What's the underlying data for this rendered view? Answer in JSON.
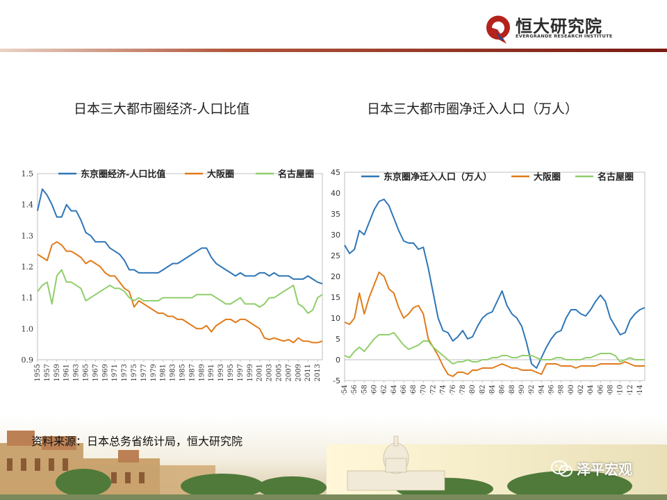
{
  "brand": {
    "name": "恒大研究院",
    "subtitle": "EVERGRANDE RESEARCH INSTITUTE",
    "accent_color": "#a52a1a",
    "logo_icon": "evergrande-logo-icon"
  },
  "source_note": "资料来源：日本总务省统计局，恒大研究院",
  "wechat": {
    "label": "泽平宏观",
    "icon": "wechat-icon"
  },
  "chart_data": [
    {
      "type": "line",
      "title": "日本三大都市圈经济-人口比值",
      "xlabel": "",
      "ylabel": "",
      "ylim": [
        0.9,
        1.5
      ],
      "yticks": [
        "1.5",
        "1.4",
        "1.3",
        "1.2",
        "1.1",
        "1.0",
        "0.9"
      ],
      "ytick_values": [
        1.5,
        1.4,
        1.3,
        1.2,
        1.1,
        1.0,
        0.9
      ],
      "xticks": [
        "1955",
        "1957",
        "1959",
        "1961",
        "1963",
        "1965",
        "1967",
        "1969",
        "1971",
        "1973",
        "1975",
        "1977",
        "1979",
        "1981",
        "1983",
        "1985",
        "1987",
        "1989",
        "1991",
        "1993",
        "1995",
        "1997",
        "1999",
        "2001",
        "2003",
        "2005",
        "2007",
        "2009",
        "2011",
        "2013"
      ],
      "x": [
        1955,
        1956,
        1957,
        1958,
        1959,
        1960,
        1961,
        1962,
        1963,
        1964,
        1965,
        1966,
        1967,
        1968,
        1969,
        1970,
        1971,
        1972,
        1973,
        1974,
        1975,
        1976,
        1977,
        1978,
        1979,
        1980,
        1981,
        1982,
        1983,
        1984,
        1985,
        1986,
        1987,
        1988,
        1989,
        1990,
        1991,
        1992,
        1993,
        1994,
        1995,
        1996,
        1997,
        1998,
        1999,
        2000,
        2001,
        2002,
        2003,
        2004,
        2005,
        2006,
        2007,
        2008,
        2009,
        2010,
        2011,
        2012,
        2013,
        2014
      ],
      "legend_position": "top",
      "series": [
        {
          "name": "东京圈经济-人口比值",
          "color": "#2e75b6",
          "values": [
            1.38,
            1.45,
            1.43,
            1.4,
            1.36,
            1.36,
            1.4,
            1.38,
            1.38,
            1.35,
            1.31,
            1.3,
            1.28,
            1.28,
            1.28,
            1.26,
            1.25,
            1.24,
            1.22,
            1.19,
            1.19,
            1.18,
            1.18,
            1.18,
            1.18,
            1.18,
            1.19,
            1.2,
            1.21,
            1.21,
            1.22,
            1.23,
            1.24,
            1.25,
            1.26,
            1.26,
            1.23,
            1.21,
            1.2,
            1.19,
            1.18,
            1.17,
            1.18,
            1.17,
            1.17,
            1.17,
            1.18,
            1.18,
            1.17,
            1.18,
            1.17,
            1.17,
            1.17,
            1.16,
            1.16,
            1.16,
            1.17,
            1.16,
            1.15,
            1.145
          ]
        },
        {
          "name": "大阪圈",
          "color": "#e07b1a",
          "values": [
            1.24,
            1.23,
            1.22,
            1.27,
            1.28,
            1.27,
            1.25,
            1.25,
            1.24,
            1.23,
            1.21,
            1.22,
            1.21,
            1.2,
            1.18,
            1.17,
            1.17,
            1.15,
            1.13,
            1.12,
            1.07,
            1.09,
            1.08,
            1.07,
            1.06,
            1.05,
            1.05,
            1.04,
            1.04,
            1.03,
            1.03,
            1.02,
            1.01,
            1.0,
            1.0,
            1.01,
            0.99,
            1.01,
            1.02,
            1.03,
            1.03,
            1.02,
            1.03,
            1.03,
            1.02,
            1.01,
            1.0,
            0.97,
            0.965,
            0.97,
            0.965,
            0.96,
            0.965,
            0.955,
            0.97,
            0.96,
            0.96,
            0.955,
            0.955,
            0.96
          ]
        },
        {
          "name": "名古屋圈",
          "color": "#8fce6a",
          "values": [
            1.12,
            1.14,
            1.15,
            1.08,
            1.17,
            1.19,
            1.15,
            1.15,
            1.14,
            1.13,
            1.09,
            1.1,
            1.11,
            1.12,
            1.13,
            1.14,
            1.13,
            1.13,
            1.12,
            1.1,
            1.09,
            1.1,
            1.09,
            1.09,
            1.09,
            1.09,
            1.1,
            1.1,
            1.1,
            1.1,
            1.1,
            1.1,
            1.1,
            1.11,
            1.11,
            1.11,
            1.11,
            1.1,
            1.09,
            1.08,
            1.08,
            1.09,
            1.1,
            1.08,
            1.08,
            1.08,
            1.07,
            1.08,
            1.1,
            1.1,
            1.11,
            1.12,
            1.13,
            1.14,
            1.08,
            1.07,
            1.05,
            1.06,
            1.1,
            1.11
          ]
        }
      ]
    },
    {
      "type": "line",
      "title": "日本三大都市圈净迁入人口（万人）",
      "xlabel": "",
      "ylabel": "",
      "ylim": [
        -5,
        45
      ],
      "yticks": [
        "45",
        "40",
        "35",
        "30",
        "25",
        "20",
        "15",
        "10",
        "5",
        "0",
        "-5"
      ],
      "ytick_values": [
        45,
        40,
        35,
        30,
        25,
        20,
        15,
        10,
        5,
        0,
        -5
      ],
      "xticks": [
        "1954",
        "1956",
        "1958",
        "1960",
        "1962",
        "1964",
        "1966",
        "1968",
        "1970",
        "1972",
        "1974",
        "1976",
        "1978",
        "1980",
        "1982",
        "1984",
        "1986",
        "1988",
        "1990",
        "1992",
        "1994",
        "1996",
        "1998",
        "2000",
        "2002",
        "2004",
        "2006",
        "2008",
        "2010",
        "2012",
        "2014"
      ],
      "x": [
        1954,
        1955,
        1956,
        1957,
        1958,
        1959,
        1960,
        1961,
        1962,
        1963,
        1964,
        1965,
        1966,
        1967,
        1968,
        1969,
        1970,
        1971,
        1972,
        1973,
        1974,
        1975,
        1976,
        1977,
        1978,
        1979,
        1980,
        1981,
        1982,
        1983,
        1984,
        1985,
        1986,
        1987,
        1988,
        1989,
        1990,
        1991,
        1992,
        1993,
        1994,
        1995,
        1996,
        1997,
        1998,
        1999,
        2000,
        2001,
        2002,
        2003,
        2004,
        2005,
        2006,
        2007,
        2008,
        2009,
        2010,
        2011,
        2012,
        2013,
        2014,
        2015
      ],
      "legend_position": "top",
      "series": [
        {
          "name": "东京圈净迁入人口（万人）",
          "color": "#2e75b6",
          "values": [
            27.5,
            25.5,
            26.5,
            31,
            30,
            33,
            36,
            38,
            38.5,
            37,
            34,
            31,
            28.5,
            28,
            28,
            26.5,
            27,
            22,
            16,
            10,
            7,
            6.5,
            4.5,
            5.5,
            7,
            5,
            5.5,
            8,
            10,
            11,
            11.5,
            14,
            16.5,
            13,
            11,
            10,
            8,
            4,
            -1,
            -2,
            0.5,
            3,
            5,
            6.5,
            7,
            10,
            12,
            12,
            11,
            10.5,
            12,
            14,
            15.5,
            14,
            10,
            8,
            6,
            6.5,
            9.5,
            11,
            12,
            12.5
          ]
        },
        {
          "name": "大阪圈",
          "color": "#e07b1a",
          "values": [
            9,
            8.5,
            10,
            16,
            11,
            15,
            18,
            21,
            20,
            17,
            16,
            12.5,
            10,
            11,
            12.5,
            13,
            11,
            5,
            3,
            1,
            -1.5,
            -3.5,
            -4,
            -3,
            -3,
            -3.5,
            -2.5,
            -2.5,
            -2,
            -2,
            -2,
            -1.5,
            -1,
            -1.5,
            -2,
            -2,
            -2.5,
            -2.5,
            -2.5,
            -3,
            -3.5,
            -1,
            -1,
            -1,
            -1.5,
            -1.5,
            -1.5,
            -2,
            -1.5,
            -1.5,
            -1.5,
            -1.5,
            -1,
            -1,
            -1,
            -1,
            -1,
            -0.5,
            -1,
            -1.5,
            -1.5,
            -1.5
          ]
        },
        {
          "name": "名古屋圈",
          "color": "#8fce6a",
          "values": [
            1,
            0.5,
            2,
            3,
            2,
            3.5,
            5,
            6,
            6,
            6,
            6.5,
            5,
            3.5,
            2.5,
            3,
            3.5,
            4.5,
            4.5,
            3,
            2,
            1,
            0,
            -1,
            -0.5,
            -0.5,
            0,
            -0.5,
            -0.5,
            0,
            0,
            0.5,
            0.5,
            1,
            1,
            0.5,
            0.5,
            1,
            1,
            1,
            0.5,
            0,
            0,
            0,
            0.5,
            0.5,
            0,
            0,
            0,
            0,
            0.5,
            0.5,
            1,
            1.5,
            1.5,
            1.5,
            1,
            -0.5,
            0,
            0.5,
            0,
            0,
            0
          ]
        }
      ]
    }
  ]
}
